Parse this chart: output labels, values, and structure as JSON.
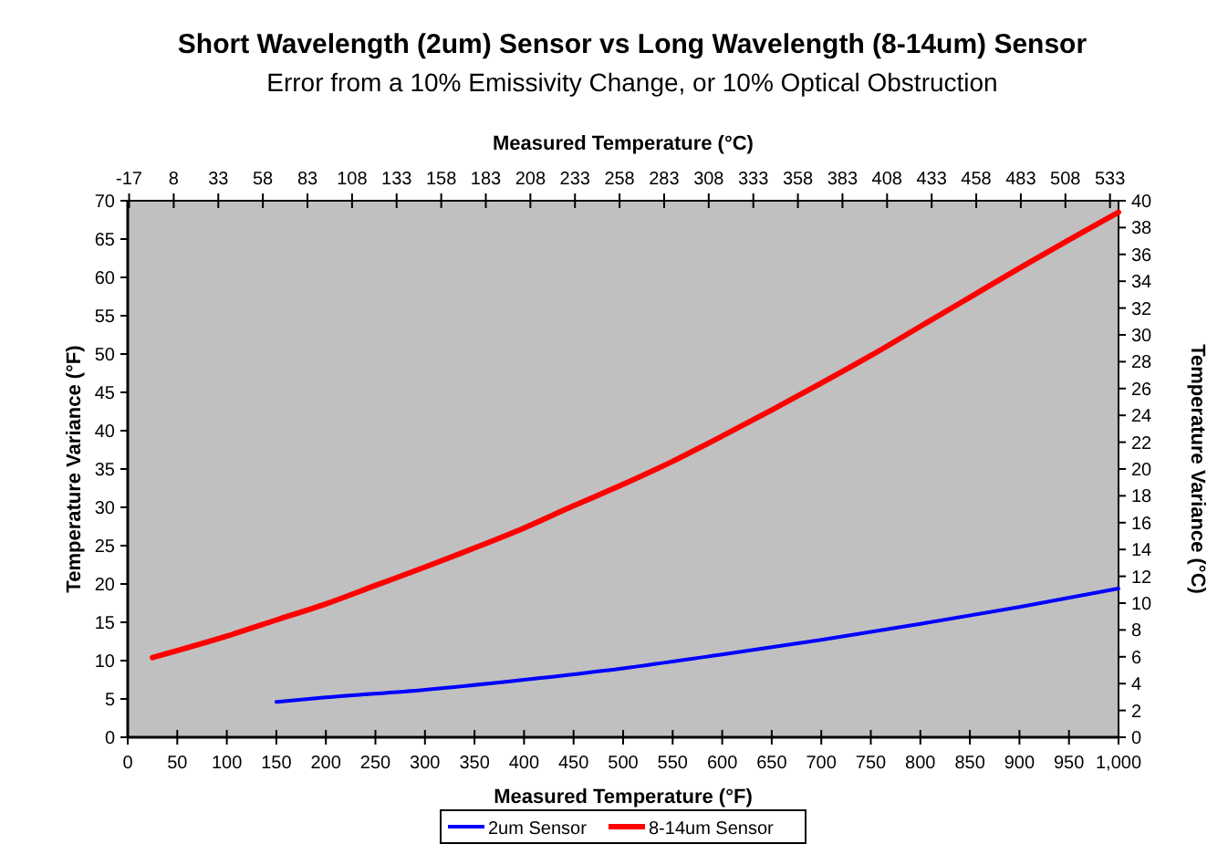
{
  "chart_data": {
    "type": "line",
    "title": "Short Wavelength (2um) Sensor vs Long Wavelength (8-14um) Sensor",
    "subtitle": "Error from a 10% Emissivity Change, or 10% Optical Obstruction",
    "xlabel": "Measured Temperature (°F)",
    "ylabel": "Temperature Variance (°F)",
    "y2label": "Temperature Variance (°C)",
    "x2label": "Measured Temperature (°C)",
    "xlim": [
      0,
      1000
    ],
    "xticks": [
      0,
      50,
      100,
      150,
      200,
      250,
      300,
      350,
      400,
      450,
      500,
      550,
      600,
      650,
      700,
      750,
      800,
      850,
      900,
      950,
      {
        "value": 1000,
        "label": "1,000"
      }
    ],
    "ylim": [
      0,
      70
    ],
    "yticks": [
      0,
      5,
      10,
      15,
      20,
      25,
      30,
      35,
      40,
      45,
      50,
      55,
      60,
      65,
      70
    ],
    "y2lim": [
      0,
      40
    ],
    "y2ticks": [
      0,
      2,
      4,
      6,
      8,
      10,
      12,
      14,
      16,
      18,
      20,
      22,
      24,
      26,
      28,
      30,
      32,
      34,
      36,
      38,
      40
    ],
    "x2lim": [
      -17.78,
      537.78
    ],
    "x2ticks": [
      -17,
      8,
      33,
      58,
      83,
      108,
      133,
      158,
      183,
      208,
      233,
      258,
      283,
      308,
      333,
      358,
      383,
      408,
      433,
      458,
      483,
      508,
      533
    ],
    "grid": false,
    "legend": "bottom",
    "marker": "none",
    "line_style": "solid",
    "series": [
      {
        "name": "2um Sensor",
        "color": "#0000ff",
        "x": [
          150,
          200,
          300,
          400,
          500,
          600,
          700,
          800,
          900,
          1000
        ],
        "values": [
          4.6,
          5.2,
          6.2,
          7.5,
          9.0,
          10.8,
          12.7,
          14.8,
          17.0,
          19.4
        ]
      },
      {
        "name": "8-14um Sensor",
        "color": "#ff0000",
        "x": [
          25,
          100,
          150,
          200,
          250,
          300,
          350,
          400,
          450,
          500,
          550,
          600,
          650,
          700,
          750,
          800,
          850,
          900,
          950,
          1000
        ],
        "values": [
          10.4,
          13.2,
          15.3,
          17.4,
          19.8,
          22.2,
          24.7,
          27.3,
          30.2,
          33.0,
          36.0,
          39.3,
          42.7,
          46.2,
          49.8,
          53.6,
          57.4,
          61.2,
          64.9,
          68.5
        ]
      }
    ]
  }
}
